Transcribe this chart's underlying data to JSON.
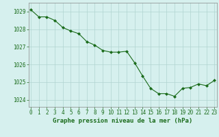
{
  "x": [
    0,
    1,
    2,
    3,
    4,
    5,
    6,
    7,
    8,
    9,
    10,
    11,
    12,
    13,
    14,
    15,
    16,
    17,
    18,
    19,
    20,
    21,
    22,
    23
  ],
  "y": [
    1029.1,
    1028.7,
    1028.7,
    1028.5,
    1028.1,
    1027.9,
    1027.75,
    1027.3,
    1027.1,
    1026.8,
    1026.7,
    1026.7,
    1026.75,
    1026.1,
    1025.35,
    1024.65,
    1024.35,
    1024.35,
    1024.2,
    1024.65,
    1024.7,
    1024.9,
    1024.8,
    1025.1
  ],
  "line_color": "#1a6b1a",
  "marker": "D",
  "marker_size": 2.0,
  "bg_color": "#d6f0ee",
  "grid_color": "#b0d4d0",
  "ylabel_ticks": [
    1024,
    1025,
    1026,
    1027,
    1028,
    1029
  ],
  "xlabel_ticks": [
    0,
    1,
    2,
    3,
    4,
    5,
    6,
    7,
    8,
    9,
    10,
    11,
    12,
    13,
    14,
    15,
    16,
    17,
    18,
    19,
    20,
    21,
    22,
    23
  ],
  "xlabel_label": "Graphe pression niveau de la mer (hPa)",
  "ylim": [
    1023.6,
    1029.5
  ],
  "xlim": [
    -0.3,
    23.3
  ],
  "xlabel_fontsize": 6.5,
  "tick_fontsize": 5.5,
  "tick_color": "#1a6b1a",
  "label_color": "#1a6b1a"
}
